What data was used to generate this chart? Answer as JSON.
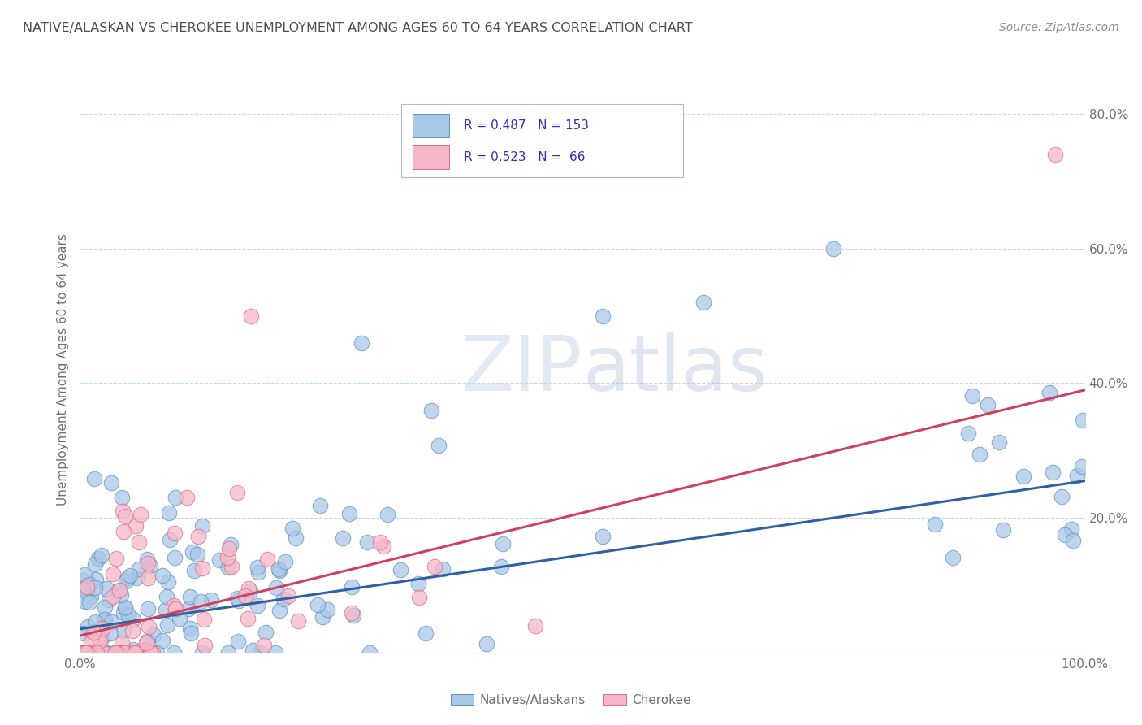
{
  "title": "NATIVE/ALASKAN VS CHEROKEE UNEMPLOYMENT AMONG AGES 60 TO 64 YEARS CORRELATION CHART",
  "source": "Source: ZipAtlas.com",
  "ylabel": "Unemployment Among Ages 60 to 64 years",
  "xlim": [
    0,
    1
  ],
  "ylim": [
    0,
    0.84
  ],
  "xtick_positions": [
    0.0,
    1.0
  ],
  "xtick_labels": [
    "0.0%",
    "100.0%"
  ],
  "ytick_positions": [
    0.2,
    0.4,
    0.6,
    0.8
  ],
  "ytick_labels": [
    "20.0%",
    "40.0%",
    "60.0%",
    "80.0%"
  ],
  "native_R": 0.487,
  "native_N": 153,
  "cherokee_R": 0.523,
  "cherokee_N": 66,
  "native_color": "#a8c8e8",
  "cherokee_color": "#f5b8c8",
  "native_edge_color": "#6090c0",
  "cherokee_edge_color": "#e06880",
  "native_line_color": "#3060a0",
  "cherokee_line_color": "#d04060",
  "background_color": "#ffffff",
  "title_color": "#505050",
  "source_color": "#909090",
  "legend_text_color": "#3030bb",
  "axis_label_color": "#707070",
  "grid_color": "#c8d8e8",
  "watermark_color": "#c8d8ec",
  "native_line_start_y": 0.035,
  "native_line_end_y": 0.255,
  "cherokee_line_start_y": 0.025,
  "cherokee_line_end_y": 0.39
}
